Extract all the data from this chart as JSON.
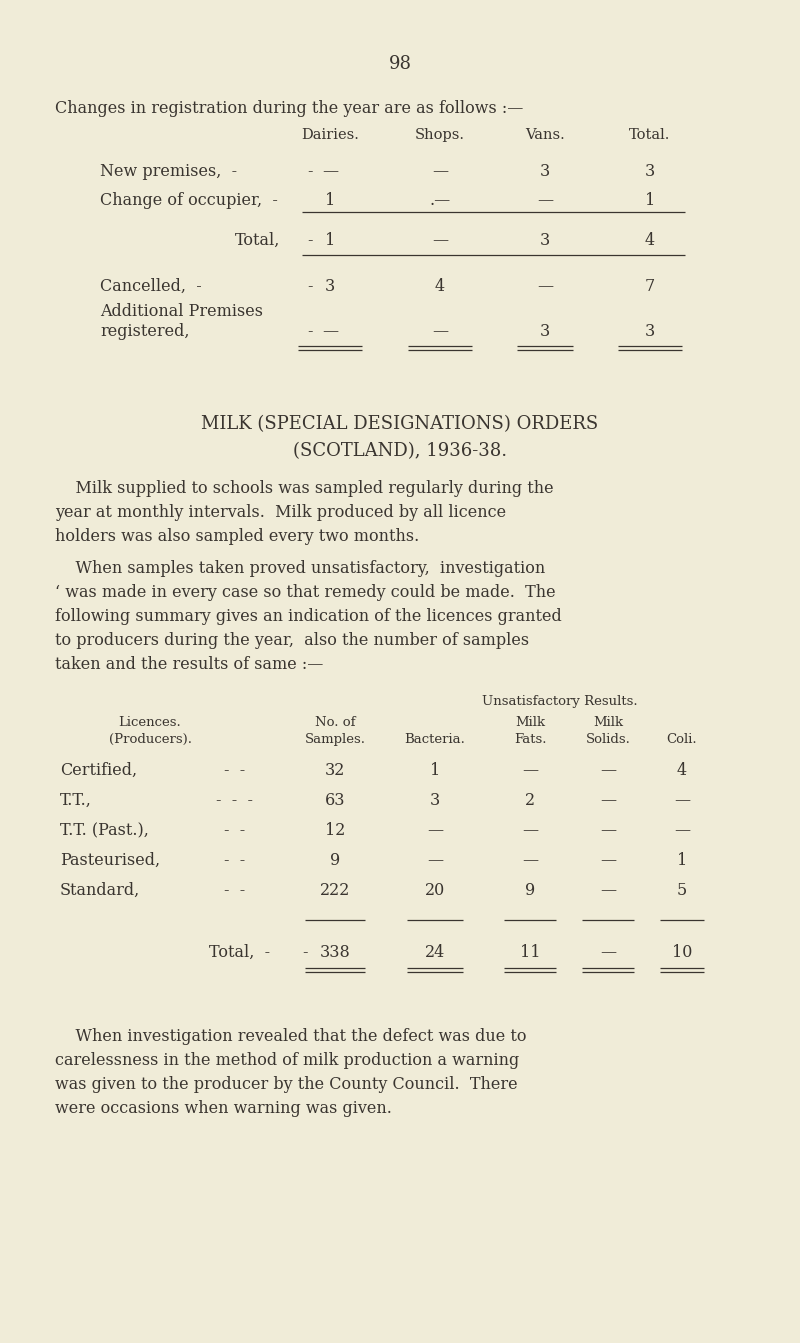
{
  "bg_color": "#f0ecd8",
  "text_color": "#3a3530",
  "page_number": "98",
  "section1_title": "Changes in registration during the year are as follows :—",
  "t1_col_headers": [
    "Dairies.",
    "Shops.",
    "Vans.",
    "Total."
  ],
  "section2_title_line1": "MILK (SPECIAL DESIGNATIONS) ORDERS",
  "section2_title_line2": "(SCOTLAND), 1936-38.",
  "para1_lines": [
    "    Milk supplied to schools was sampled regularly during the",
    "year at monthly intervals.  Milk produced by all licence",
    "holders was also sampled every two months."
  ],
  "para2_lines": [
    "    When samples taken proved unsatisfactory,  investigation",
    "‘ was made in every case so that remedy could be made.  The",
    "following summary gives an indication of the licences granted",
    "to producers during the year,  also the number of samples",
    "taken and the results of same :—"
  ],
  "para3_lines": [
    "    When investigation revealed that the defect was due to",
    "carelessness in the method of milk production a warning",
    "was given to the producer by the County Council.  There",
    "were occasions when warning was given."
  ]
}
